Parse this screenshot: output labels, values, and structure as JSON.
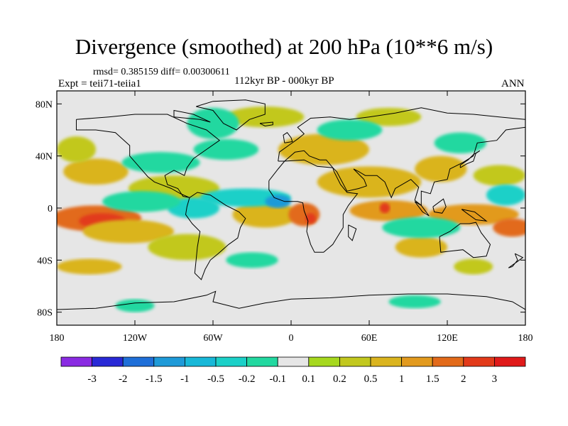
{
  "header": {
    "title": "Divergence (smoothed) at 200 hPa (10**6 m/s)",
    "stats": "rmsd= 0.385159 diff= 0.00300611",
    "experiment": "Expt = teii71-teiia1",
    "period": "112kyr BP - 000kyr BP",
    "season": "ANN"
  },
  "map": {
    "lon_range": [
      -180,
      180
    ],
    "lat_range": [
      -90,
      90
    ],
    "ocean_background": "#e6e6e6",
    "coastline_color": "#000000",
    "y_ticks": [
      "80N",
      "40N",
      "0",
      "40S",
      "80S"
    ],
    "x_ticks": [
      "180",
      "120W",
      "60W",
      "0",
      "60E",
      "120E",
      "180"
    ],
    "anomaly_patches": [
      {
        "lon": -150,
        "lat": -8,
        "rlon": 35,
        "rlat": 10,
        "level": 1.5
      },
      {
        "lon": -145,
        "lat": -10,
        "rlon": 18,
        "rlat": 6,
        "level": 2
      },
      {
        "lon": -125,
        "lat": -18,
        "rlon": 35,
        "rlat": 9,
        "level": 0.5
      },
      {
        "lon": -20,
        "lat": -5,
        "rlon": 25,
        "rlat": 10,
        "level": 0.5
      },
      {
        "lon": 10,
        "lat": -5,
        "rlon": 12,
        "rlat": 9,
        "level": 1.5
      },
      {
        "lon": 15,
        "lat": -8,
        "rlon": 4,
        "rlat": 4,
        "level": 2
      },
      {
        "lon": 75,
        "lat": -2,
        "rlon": 30,
        "rlat": 8,
        "level": 1
      },
      {
        "lon": 72,
        "lat": 0,
        "rlon": 4,
        "rlat": 4,
        "level": 2
      },
      {
        "lon": 140,
        "lat": -5,
        "rlon": 35,
        "rlat": 8,
        "level": 1
      },
      {
        "lon": 170,
        "lat": -15,
        "rlon": 15,
        "rlat": 7,
        "level": 1.5
      },
      {
        "lon": -150,
        "lat": 28,
        "rlon": 25,
        "rlat": 10,
        "level": 0.5
      },
      {
        "lon": -165,
        "lat": 45,
        "rlon": 15,
        "rlat": 10,
        "level": 0.2
      },
      {
        "lon": -90,
        "lat": 15,
        "rlon": 35,
        "rlat": 10,
        "level": 0.2
      },
      {
        "lon": 25,
        "lat": 45,
        "rlon": 35,
        "rlat": 12,
        "level": 0.5
      },
      {
        "lon": 60,
        "lat": 20,
        "rlon": 40,
        "rlat": 12,
        "level": 0.5
      },
      {
        "lon": 115,
        "lat": 30,
        "rlon": 20,
        "rlat": 10,
        "level": 0.5
      },
      {
        "lon": 160,
        "lat": 25,
        "rlon": 20,
        "rlat": 8,
        "level": 0.2
      },
      {
        "lon": -20,
        "lat": 70,
        "rlon": 30,
        "rlat": 8,
        "level": 0.2
      },
      {
        "lon": 75,
        "lat": 70,
        "rlon": 25,
        "rlat": 7,
        "level": 0.2
      },
      {
        "lon": -80,
        "lat": -30,
        "rlon": 30,
        "rlat": 10,
        "level": 0.2
      },
      {
        "lon": 100,
        "lat": -30,
        "rlon": 20,
        "rlat": 8,
        "level": 0.5
      },
      {
        "lon": -155,
        "lat": -45,
        "rlon": 25,
        "rlat": 6,
        "level": 0.5
      },
      {
        "lon": 140,
        "lat": -45,
        "rlon": 15,
        "rlat": 6,
        "level": 0.2
      },
      {
        "lon": -35,
        "lat": 8,
        "rlon": 35,
        "rlat": 7,
        "level": -0.5
      },
      {
        "lon": -10,
        "lat": 5,
        "rlon": 10,
        "rlat": 5,
        "level": -1.5
      },
      {
        "lon": -100,
        "lat": 35,
        "rlon": 30,
        "rlat": 8,
        "level": -0.2
      },
      {
        "lon": -75,
        "lat": 0,
        "rlon": 20,
        "rlat": 8,
        "level": -0.5
      },
      {
        "lon": -50,
        "lat": 45,
        "rlon": 25,
        "rlat": 8,
        "level": -0.2
      },
      {
        "lon": -60,
        "lat": 65,
        "rlon": 20,
        "rlat": 12,
        "level": -0.2
      },
      {
        "lon": 100,
        "lat": -15,
        "rlon": 30,
        "rlat": 8,
        "level": -0.2
      },
      {
        "lon": 165,
        "lat": 10,
        "rlon": 15,
        "rlat": 8,
        "level": -0.5
      },
      {
        "lon": -115,
        "lat": 5,
        "rlon": 30,
        "rlat": 8,
        "level": -0.2
      },
      {
        "lon": 130,
        "lat": 50,
        "rlon": 20,
        "rlat": 8,
        "level": -0.2
      },
      {
        "lon": 45,
        "lat": 60,
        "rlon": 25,
        "rlat": 8,
        "level": -0.2
      },
      {
        "lon": -120,
        "lat": -75,
        "rlon": 15,
        "rlat": 5,
        "level": -0.2
      },
      {
        "lon": 95,
        "lat": -72,
        "rlon": 20,
        "rlat": 5,
        "level": -0.2
      },
      {
        "lon": -30,
        "lat": -40,
        "rlon": 20,
        "rlat": 6,
        "level": -0.2
      }
    ]
  },
  "colorbar": {
    "colors": [
      "#8a2be2",
      "#2929d6",
      "#1f6fd8",
      "#1e9ad8",
      "#18b8d8",
      "#1bd0c8",
      "#22d8a0",
      "#e6e6e6",
      "#a6d81e",
      "#c2c81e",
      "#dab41e",
      "#e29a1e",
      "#e26a1a",
      "#e23a1a",
      "#e01a1a"
    ],
    "labels": [
      "-3",
      "-2",
      "-1.5",
      "-1",
      "-0.5",
      "-0.2",
      "-0.1",
      "0.1",
      "0.2",
      "0.5",
      "1",
      "1.5",
      "2",
      "3"
    ]
  }
}
